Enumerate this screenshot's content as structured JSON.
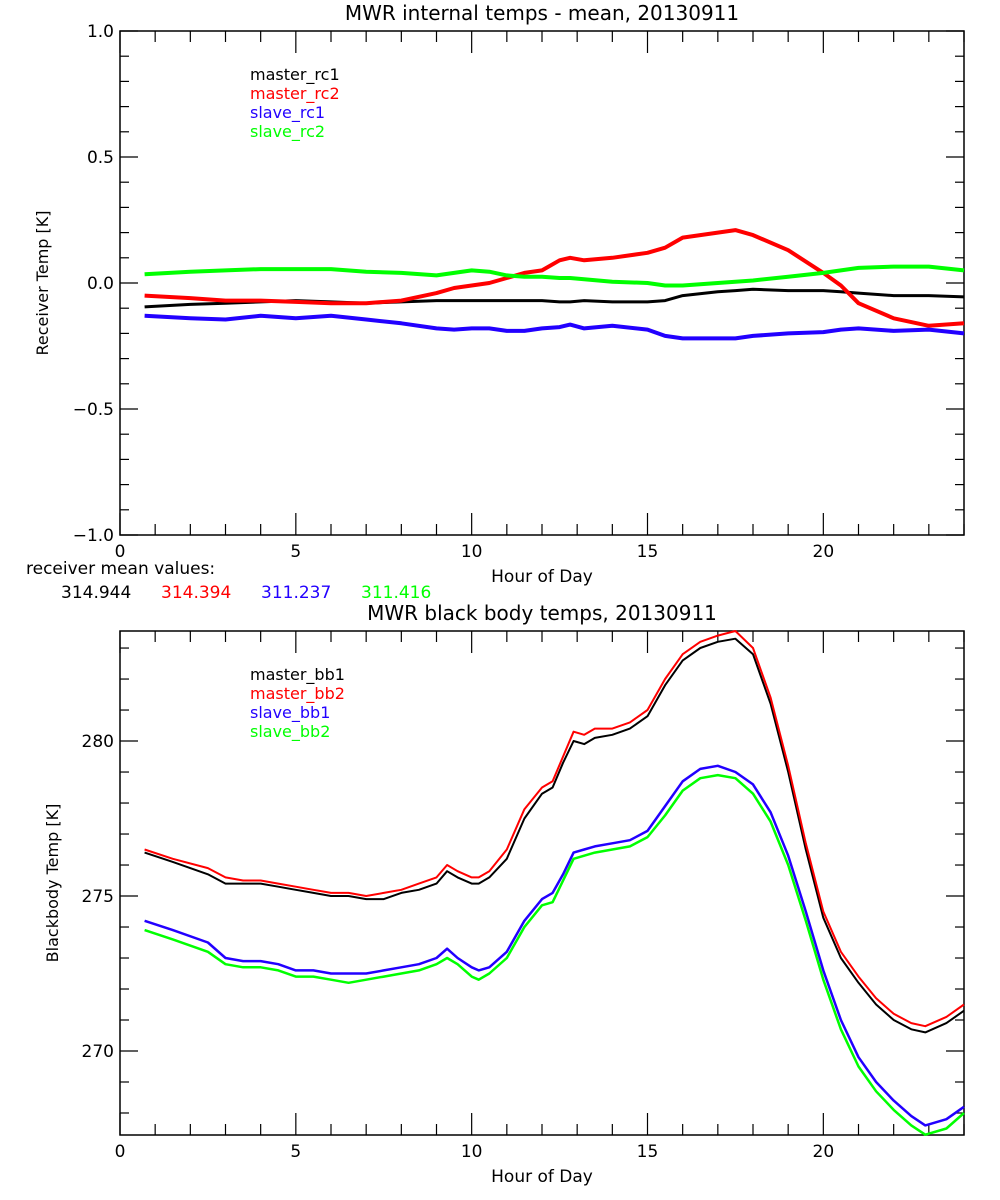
{
  "chart_data": [
    {
      "type": "line",
      "title": "MWR internal temps - mean, 20130911",
      "xlabel": "Hour of Day",
      "ylabel": "Receiver Temp [K]",
      "xlim": [
        0,
        24
      ],
      "ylim": [
        -1.0,
        1.0
      ],
      "xticks": [
        "0",
        "5",
        "10",
        "15",
        "20"
      ],
      "xtick_values": [
        0,
        5,
        10,
        15,
        20
      ],
      "yticks": [
        "-1.0",
        "-0.5",
        "0.0",
        "0.5",
        "1.0"
      ],
      "ytick_values": [
        -1.0,
        -0.5,
        0.0,
        0.5,
        1.0
      ],
      "grid": false,
      "legend_position": "top-left",
      "x": [
        0.7,
        2,
        3,
        4,
        5,
        6,
        7,
        8,
        9,
        9.5,
        10,
        10.5,
        11,
        11.5,
        12,
        12.5,
        12.8,
        13.2,
        14,
        15,
        15.5,
        16,
        17,
        17.5,
        18,
        19,
        20,
        20.5,
        21,
        22,
        23,
        24
      ],
      "series": [
        {
          "name": "master_rc1",
          "color": "#000000",
          "values": [
            -0.095,
            -0.085,
            -0.08,
            -0.075,
            -0.07,
            -0.075,
            -0.08,
            -0.075,
            -0.07,
            -0.07,
            -0.07,
            -0.07,
            -0.07,
            -0.07,
            -0.07,
            -0.075,
            -0.075,
            -0.07,
            -0.075,
            -0.075,
            -0.07,
            -0.05,
            -0.035,
            -0.03,
            -0.025,
            -0.03,
            -0.03,
            -0.035,
            -0.04,
            -0.05,
            -0.05,
            -0.055
          ]
        },
        {
          "name": "master_rc2",
          "color": "#ff0000",
          "values": [
            -0.05,
            -0.06,
            -0.07,
            -0.07,
            -0.075,
            -0.08,
            -0.08,
            -0.07,
            -0.04,
            -0.02,
            -0.01,
            0.0,
            0.02,
            0.04,
            0.05,
            0.09,
            0.1,
            0.09,
            0.1,
            0.12,
            0.14,
            0.18,
            0.2,
            0.21,
            0.19,
            0.13,
            0.04,
            -0.01,
            -0.08,
            -0.14,
            -0.17,
            -0.16
          ]
        },
        {
          "name": "slave_rc1",
          "color": "#2200ff",
          "values": [
            -0.13,
            -0.14,
            -0.145,
            -0.13,
            -0.14,
            -0.13,
            -0.145,
            -0.16,
            -0.18,
            -0.185,
            -0.18,
            -0.18,
            -0.19,
            -0.19,
            -0.18,
            -0.175,
            -0.165,
            -0.18,
            -0.17,
            -0.185,
            -0.21,
            -0.22,
            -0.22,
            -0.22,
            -0.21,
            -0.2,
            -0.195,
            -0.185,
            -0.18,
            -0.19,
            -0.185,
            -0.2
          ]
        },
        {
          "name": "slave_rc2",
          "color": "#00ff00",
          "values": [
            0.035,
            0.045,
            0.05,
            0.055,
            0.055,
            0.055,
            0.045,
            0.04,
            0.03,
            0.04,
            0.05,
            0.045,
            0.03,
            0.025,
            0.025,
            0.02,
            0.02,
            0.015,
            0.005,
            0.0,
            -0.01,
            -0.01,
            0.0,
            0.005,
            0.01,
            0.025,
            0.04,
            0.05,
            0.06,
            0.065,
            0.065,
            0.05
          ]
        }
      ]
    },
    {
      "type": "line",
      "title": "MWR black body temps, 20130911",
      "xlabel": "Hour of Day",
      "ylabel": "Blackbody Temp [K]",
      "xlim": [
        0,
        24
      ],
      "ylim": [
        267.29,
        283.55
      ],
      "xticks": [
        "0",
        "5",
        "10",
        "15",
        "20"
      ],
      "xtick_values": [
        0,
        5,
        10,
        15,
        20
      ],
      "yticks": [
        "270",
        "275",
        "280"
      ],
      "ytick_values": [
        270,
        275,
        280
      ],
      "grid": false,
      "legend_position": "top-left",
      "x": [
        0.7,
        1.5,
        2.5,
        3,
        3.5,
        4,
        4.5,
        5,
        5.5,
        6,
        6.5,
        7,
        7.5,
        8,
        8.5,
        9,
        9.3,
        9.6,
        10,
        10.2,
        10.5,
        11,
        11.5,
        12,
        12.3,
        12.6,
        12.9,
        13.2,
        13.5,
        14,
        14.5,
        15,
        15.5,
        16,
        16.5,
        17,
        17.5,
        18,
        18.5,
        19,
        19.5,
        20,
        20.5,
        21,
        21.5,
        22,
        22.5,
        22.9,
        23.5,
        24
      ],
      "series": [
        {
          "name": "master_bb1",
          "color": "#000000",
          "values": [
            276.4,
            276.1,
            275.7,
            275.4,
            275.4,
            275.4,
            275.3,
            275.2,
            275.1,
            275.0,
            275.0,
            274.9,
            274.9,
            275.1,
            275.2,
            275.4,
            275.8,
            275.6,
            275.4,
            275.4,
            275.6,
            276.2,
            277.5,
            278.3,
            278.5,
            279.3,
            280.0,
            279.9,
            280.1,
            280.2,
            280.4,
            280.8,
            281.8,
            282.6,
            283.0,
            283.2,
            283.3,
            282.8,
            281.2,
            279.0,
            276.5,
            274.3,
            273.0,
            272.2,
            271.5,
            271.0,
            270.7,
            270.6,
            270.9,
            271.3
          ]
        },
        {
          "name": "master_bb2",
          "color": "#ff0000",
          "values": [
            276.5,
            276.2,
            275.9,
            275.6,
            275.5,
            275.5,
            275.4,
            275.3,
            275.2,
            275.1,
            275.1,
            275.0,
            275.1,
            275.2,
            275.4,
            275.6,
            276.0,
            275.8,
            275.6,
            275.6,
            275.8,
            276.5,
            277.8,
            278.5,
            278.7,
            279.5,
            280.3,
            280.2,
            280.4,
            280.4,
            280.6,
            281.0,
            282.0,
            282.8,
            283.2,
            283.4,
            283.55,
            283.0,
            281.4,
            279.2,
            276.7,
            274.5,
            273.2,
            272.4,
            271.7,
            271.2,
            270.9,
            270.8,
            271.1,
            271.5
          ]
        },
        {
          "name": "slave_bb1",
          "color": "#2200ff",
          "values": [
            274.2,
            273.9,
            273.5,
            273.0,
            272.9,
            272.9,
            272.8,
            272.6,
            272.6,
            272.5,
            272.5,
            272.5,
            272.6,
            272.7,
            272.8,
            273.0,
            273.3,
            273.0,
            272.7,
            272.6,
            272.7,
            273.2,
            274.2,
            274.9,
            275.1,
            275.7,
            276.4,
            276.5,
            276.6,
            276.7,
            276.8,
            277.1,
            277.9,
            278.7,
            279.1,
            279.2,
            279.0,
            278.6,
            277.7,
            276.3,
            274.5,
            272.6,
            271.0,
            269.8,
            269.0,
            268.4,
            267.9,
            267.6,
            267.8,
            268.2
          ]
        },
        {
          "name": "slave_bb2",
          "color": "#00ff00",
          "values": [
            273.9,
            273.6,
            273.2,
            272.8,
            272.7,
            272.7,
            272.6,
            272.4,
            272.4,
            272.3,
            272.2,
            272.3,
            272.4,
            272.5,
            272.6,
            272.8,
            273.0,
            272.8,
            272.4,
            272.3,
            272.5,
            273.0,
            274.0,
            274.7,
            274.8,
            275.5,
            276.2,
            276.3,
            276.4,
            276.5,
            276.6,
            276.9,
            277.6,
            278.4,
            278.8,
            278.9,
            278.8,
            278.3,
            277.4,
            276.0,
            274.2,
            272.3,
            270.7,
            269.5,
            268.7,
            268.1,
            267.6,
            267.3,
            267.5,
            268.0
          ]
        }
      ]
    }
  ],
  "legend_top": [
    "master_rc1",
    "master_rc2",
    "slave_rc1",
    "slave_rc2"
  ],
  "legend_bottom": [
    "master_bb1",
    "master_bb2",
    "slave_bb1",
    "slave_bb2"
  ],
  "receiver_means": {
    "label": "receiver mean values:",
    "values": [
      "314.944",
      "314.394",
      "311.237",
      "311.416"
    ]
  },
  "colors": {
    "black": "#000000",
    "red": "#ff0000",
    "blue": "#2200ff",
    "green": "#00ff00"
  }
}
